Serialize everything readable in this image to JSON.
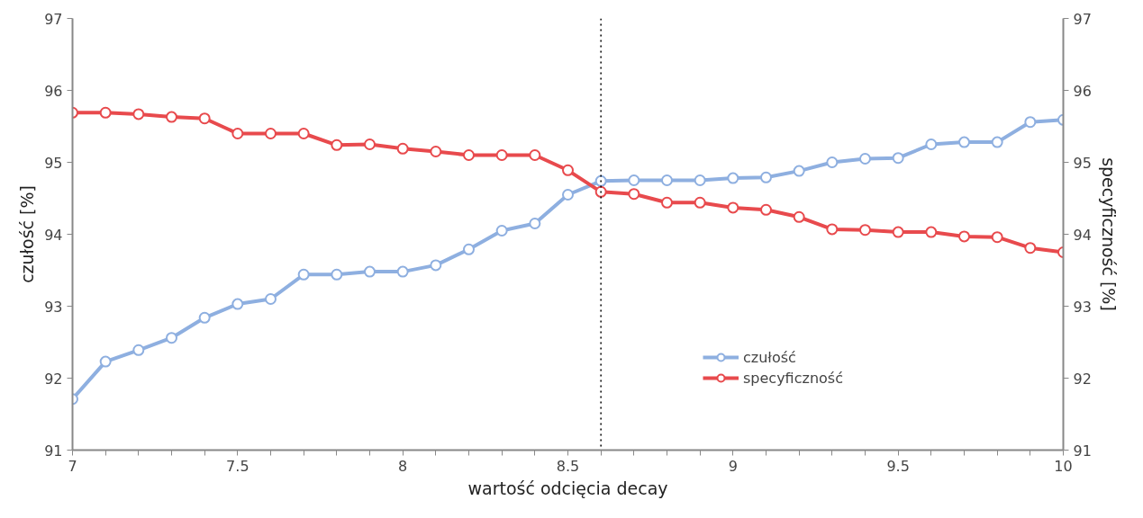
{
  "chart_data": {
    "type": "line",
    "xlabel": "wartość odcięcia decay",
    "ylabel": "czułość [%]",
    "y2label": "specyficzność [%]",
    "x": [
      7.0,
      7.1,
      7.2,
      7.3,
      7.4,
      7.5,
      7.6,
      7.7,
      7.8,
      7.9,
      8.0,
      8.1,
      8.2,
      8.3,
      8.4,
      8.5,
      8.6,
      8.7,
      8.8,
      8.9,
      9.0,
      9.1,
      9.2,
      9.3,
      9.4,
      9.5,
      9.6,
      9.7,
      9.8,
      9.9,
      10.0
    ],
    "series": [
      {
        "name": "czułość",
        "color": "#8eafe0",
        "values": [
          91.71,
          92.23,
          92.39,
          92.56,
          92.84,
          93.03,
          93.1,
          93.44,
          93.44,
          93.48,
          93.48,
          93.57,
          93.79,
          94.05,
          94.15,
          94.55,
          94.74,
          94.75,
          94.75,
          94.75,
          94.78,
          94.79,
          94.88,
          95.0,
          95.05,
          95.06,
          95.25,
          95.28,
          95.28,
          95.56,
          95.59
        ]
      },
      {
        "name": "specyficzność",
        "color": "#e84a4d",
        "values": [
          95.69,
          95.69,
          95.67,
          95.63,
          95.61,
          95.4,
          95.4,
          95.4,
          95.24,
          95.25,
          95.19,
          95.15,
          95.1,
          95.1,
          95.1,
          94.89,
          94.59,
          94.56,
          94.44,
          94.44,
          94.37,
          94.34,
          94.24,
          94.07,
          94.06,
          94.03,
          94.03,
          93.97,
          93.96,
          93.81,
          93.75
        ]
      }
    ],
    "xlim": [
      7,
      10
    ],
    "xticks": [
      7,
      {
        "value": 7.1,
        "label": null
      },
      {
        "value": 7.2,
        "label": null
      },
      {
        "value": 7.3,
        "label": null
      },
      {
        "value": 7.4,
        "label": null
      },
      7.5,
      {
        "value": 7.6,
        "label": null
      },
      {
        "value": 7.7,
        "label": null
      },
      {
        "value": 7.8,
        "label": null
      },
      {
        "value": 7.9,
        "label": null
      },
      8,
      {
        "value": 8.1,
        "label": null
      },
      {
        "value": 8.2,
        "label": null
      },
      {
        "value": 8.3,
        "label": null
      },
      {
        "value": 8.4,
        "label": null
      },
      8.5,
      {
        "value": 8.6,
        "label": null
      },
      {
        "value": 8.7,
        "label": null
      },
      {
        "value": 8.8,
        "label": null
      },
      {
        "value": 8.9,
        "label": null
      },
      9,
      {
        "value": 9.1,
        "label": null
      },
      {
        "value": 9.2,
        "label": null
      },
      {
        "value": 9.3,
        "label": null
      },
      {
        "value": 9.4,
        "label": null
      },
      9.5,
      {
        "value": 9.6,
        "label": null
      },
      {
        "value": 9.7,
        "label": null
      },
      {
        "value": 9.8,
        "label": null
      },
      {
        "value": 9.9,
        "label": null
      },
      10
    ],
    "ylim": [
      91,
      97
    ],
    "yticks": [
      91,
      92,
      93,
      94,
      95,
      96,
      97
    ],
    "y2lim": [
      91,
      97
    ],
    "y2ticks": [
      91,
      92,
      93,
      94,
      95,
      96,
      97
    ],
    "ref_lines": [
      {
        "axis": "x",
        "value": 8.6,
        "color": "#000000",
        "line_style": "dotted"
      }
    ],
    "marker": "circle",
    "line_style": "solid",
    "grid": false,
    "legend": "bottom right"
  }
}
